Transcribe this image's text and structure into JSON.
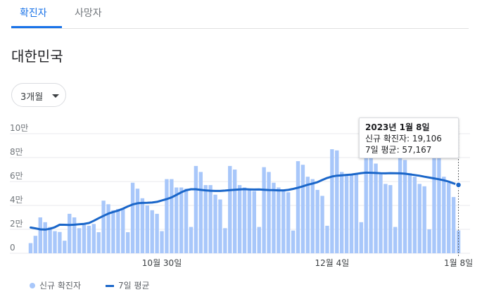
{
  "tabs": [
    {
      "label": "확진자",
      "active": true
    },
    {
      "label": "사망자",
      "active": false
    }
  ],
  "region": "대한민국",
  "range_selector": {
    "selected": "3개월"
  },
  "tooltip": {
    "date": "2023년 1월 8일",
    "new_cases_label": "신규 확진자: 19,106",
    "avg_label": "7일 평균: 57,167"
  },
  "colors": {
    "accent": "#1a73e8",
    "bar": "#a8c7fa",
    "line": "#1a66c9"
  },
  "chart_data": {
    "type": "bar",
    "title": "",
    "xlabel": "",
    "ylabel": "",
    "x_ticks": [
      "10월 30일",
      "12월 4일",
      "1월 8일"
    ],
    "y_ticks": [
      "0",
      "2만",
      "4만",
      "6만",
      "8만",
      "10만"
    ],
    "ylim": [
      0,
      100000
    ],
    "grid": true,
    "legend": {
      "position": "bottom-left"
    },
    "series": [
      {
        "name": "신규 확진자",
        "type": "bar",
        "values": [
          8500,
          14600,
          30000,
          26000,
          22000,
          18500,
          17800,
          10500,
          33000,
          30000,
          21000,
          24500,
          23000,
          24500,
          17600,
          44000,
          41000,
          36000,
          37000,
          37000,
          17600,
          59000,
          54000,
          46000,
          40000,
          36000,
          33000,
          18500,
          62000,
          62000,
          55000,
          55000,
          54000,
          22000,
          73000,
          68000,
          57000,
          57000,
          49000,
          45000,
          21000,
          73000,
          70000,
          57000,
          55000,
          54000,
          52000,
          22000,
          72000,
          68000,
          59000,
          55000,
          52000,
          51000,
          19000,
          77000,
          74000,
          64000,
          62000,
          53000,
          48000,
          23000,
          87000,
          86000,
          68000,
          66000,
          66000,
          66000,
          26000,
          85000,
          84000,
          75000,
          66000,
          58000,
          57000,
          22000,
          80000,
          78000,
          67000,
          64000,
          58000,
          56000,
          20000,
          84000,
          82000,
          64000,
          59000,
          47000,
          19106
        ]
      },
      {
        "name": "7일 평균",
        "type": "line",
        "values": [
          21500,
          20800,
          20000,
          19800,
          20500,
          21800,
          23900,
          23800,
          23700,
          23900,
          24300,
          24600,
          25300,
          27200,
          29300,
          31300,
          33200,
          34500,
          35700,
          37300,
          39200,
          40800,
          41800,
          42100,
          42200,
          42400,
          43000,
          44200,
          45300,
          46700,
          48800,
          51000,
          52700,
          53500,
          53500,
          53000,
          52600,
          52300,
          52100,
          52100,
          52400,
          52800,
          53100,
          53400,
          53600,
          53400,
          53300,
          53400,
          53100,
          52900,
          52800,
          52600,
          52600,
          53000,
          53800,
          54800,
          56000,
          57300,
          58300,
          59500,
          61300,
          63000,
          64200,
          64900,
          65200,
          65500,
          65800,
          66400,
          67000,
          67400,
          67300,
          67100,
          66900,
          66800,
          67000,
          66900,
          66800,
          66500,
          66000,
          65400,
          64800,
          64000,
          63300,
          62600,
          61900,
          61000,
          59900,
          58400,
          57167
        ]
      }
    ]
  }
}
